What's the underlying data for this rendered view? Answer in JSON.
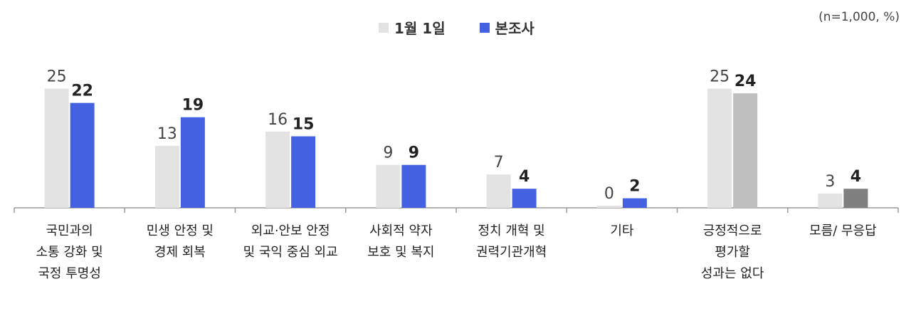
{
  "chart_data": {
    "type": "bar",
    "note": "(n=1,000, %)",
    "categories": [
      [
        "국민과의",
        "소통 강화 및",
        "국정 투명성"
      ],
      [
        "민생 안정 및",
        "경제 회복"
      ],
      [
        "외교·안보 안정",
        "및 국익 중심 외교"
      ],
      [
        "사회적 약자",
        "보호 및 복지"
      ],
      [
        "정치 개혁 및",
        "권력기관개혁"
      ],
      [
        "기타"
      ],
      [
        "긍정적으로",
        "평가할",
        "성과는 없다"
      ],
      [
        "모름/ 무응답"
      ]
    ],
    "series": [
      {
        "name": "1월 1일",
        "values": [
          25,
          13,
          16,
          9,
          7,
          0,
          25,
          3
        ],
        "color": "#e3e3e3"
      },
      {
        "name": "본조사",
        "values": [
          22,
          19,
          15,
          9,
          4,
          2,
          24,
          4
        ],
        "color": "#4361e0",
        "override_colors": {
          "6": "#bfbfbf",
          "7": "#7f7f7f"
        }
      }
    ],
    "ylim": [
      0,
      30
    ],
    "legend": "top-center"
  }
}
